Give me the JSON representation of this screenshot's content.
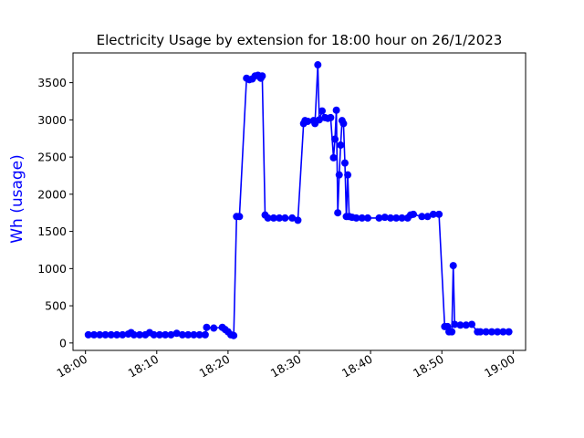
{
  "chart_data": {
    "type": "line",
    "title": "Electricity Usage by extension for 18:00 hour on 26/1/2023",
    "xlabel": "",
    "ylabel": "Wh (usage)",
    "x_ticks": [
      "18:00",
      "18:10",
      "18:20",
      "18:30",
      "18:40",
      "18:50",
      "19:00"
    ],
    "y_ticks": [
      0,
      500,
      1000,
      1500,
      2000,
      2500,
      3000,
      3500
    ],
    "xlim": [
      "18:00",
      "19:00"
    ],
    "ylim": [
      -100,
      3900
    ],
    "grid": false,
    "colors": {
      "series": "#0000ff",
      "ylabel": "#0000ff",
      "axis": "#000000"
    },
    "series": [
      {
        "name": "",
        "points": [
          [
            "18:00:24",
            110
          ],
          [
            "18:01:12",
            110
          ],
          [
            "18:02:00",
            110
          ],
          [
            "18:02:48",
            110
          ],
          [
            "18:03:36",
            110
          ],
          [
            "18:04:24",
            110
          ],
          [
            "18:05:12",
            110
          ],
          [
            "18:06:00",
            120
          ],
          [
            "18:06:24",
            140
          ],
          [
            "18:06:48",
            110
          ],
          [
            "18:07:36",
            110
          ],
          [
            "18:08:24",
            110
          ],
          [
            "18:09:00",
            140
          ],
          [
            "18:09:36",
            110
          ],
          [
            "18:10:24",
            110
          ],
          [
            "18:11:12",
            110
          ],
          [
            "18:12:00",
            110
          ],
          [
            "18:12:48",
            130
          ],
          [
            "18:13:36",
            110
          ],
          [
            "18:14:24",
            110
          ],
          [
            "18:15:12",
            110
          ],
          [
            "18:16:00",
            110
          ],
          [
            "18:16:48",
            110
          ],
          [
            "18:17:00",
            210
          ],
          [
            "18:18:00",
            200
          ],
          [
            "18:19:12",
            210
          ],
          [
            "18:19:36",
            180
          ],
          [
            "18:20:00",
            150
          ],
          [
            "18:20:24",
            110
          ],
          [
            "18:20:48",
            100
          ],
          [
            "18:21:12",
            1700
          ],
          [
            "18:21:36",
            1700
          ],
          [
            "18:22:36",
            3560
          ],
          [
            "18:23:00",
            3540
          ],
          [
            "18:23:24",
            3550
          ],
          [
            "18:23:48",
            3590
          ],
          [
            "18:24:12",
            3600
          ],
          [
            "18:24:36",
            3560
          ],
          [
            "18:24:48",
            3590
          ],
          [
            "18:25:12",
            1720
          ],
          [
            "18:25:36",
            1680
          ],
          [
            "18:26:24",
            1680
          ],
          [
            "18:27:12",
            1680
          ],
          [
            "18:28:00",
            1680
          ],
          [
            "18:29:00",
            1680
          ],
          [
            "18:29:48",
            1650
          ],
          [
            "18:30:36",
            2950
          ],
          [
            "18:30:48",
            2990
          ],
          [
            "18:31:12",
            2980
          ],
          [
            "18:32:00",
            2990
          ],
          [
            "18:32:12",
            2950
          ],
          [
            "18:32:36",
            3740
          ],
          [
            "18:32:48",
            3000
          ],
          [
            "18:33:12",
            3120
          ],
          [
            "18:33:36",
            3030
          ],
          [
            "18:34:00",
            3020
          ],
          [
            "18:34:24",
            3030
          ],
          [
            "18:34:48",
            2490
          ],
          [
            "18:35:00",
            2740
          ],
          [
            "18:35:12",
            3130
          ],
          [
            "18:35:24",
            1750
          ],
          [
            "18:35:36",
            2260
          ],
          [
            "18:35:48",
            2660
          ],
          [
            "18:36:00",
            2990
          ],
          [
            "18:36:12",
            2950
          ],
          [
            "18:36:24",
            2420
          ],
          [
            "18:36:36",
            1700
          ],
          [
            "18:36:48",
            2260
          ],
          [
            "18:37:00",
            1700
          ],
          [
            "18:37:24",
            1690
          ],
          [
            "18:38:00",
            1680
          ],
          [
            "18:38:48",
            1680
          ],
          [
            "18:39:36",
            1680
          ],
          [
            "18:41:12",
            1680
          ],
          [
            "18:42:00",
            1690
          ],
          [
            "18:42:48",
            1680
          ],
          [
            "18:43:36",
            1680
          ],
          [
            "18:44:24",
            1680
          ],
          [
            "18:45:12",
            1680
          ],
          [
            "18:45:36",
            1720
          ],
          [
            "18:46:00",
            1730
          ],
          [
            "18:47:12",
            1700
          ],
          [
            "18:48:00",
            1700
          ],
          [
            "18:48:48",
            1730
          ],
          [
            "18:49:36",
            1730
          ],
          [
            "18:50:24",
            220
          ],
          [
            "18:50:48",
            220
          ],
          [
            "18:51:00",
            150
          ],
          [
            "18:51:24",
            150
          ],
          [
            "18:51:36",
            1040
          ],
          [
            "18:51:48",
            250
          ],
          [
            "18:52:36",
            240
          ],
          [
            "18:53:24",
            240
          ],
          [
            "18:54:12",
            250
          ],
          [
            "18:55:00",
            150
          ],
          [
            "18:55:24",
            150
          ],
          [
            "18:56:12",
            150
          ],
          [
            "18:57:00",
            150
          ],
          [
            "18:57:48",
            150
          ],
          [
            "18:58:36",
            150
          ],
          [
            "18:59:24",
            150
          ]
        ]
      }
    ]
  }
}
